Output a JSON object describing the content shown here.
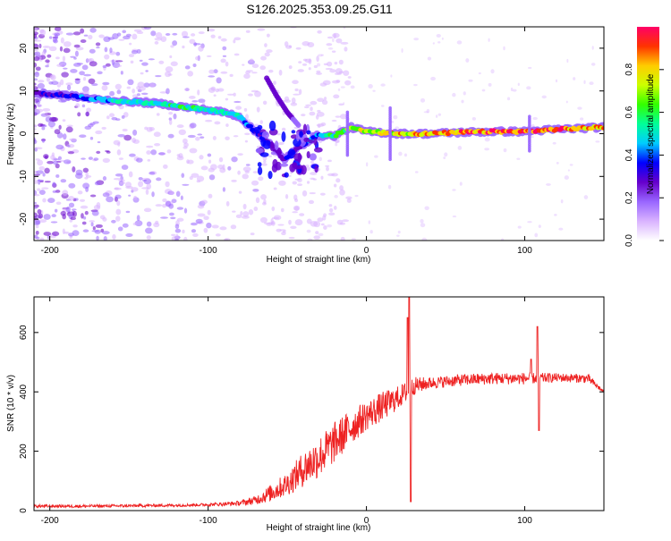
{
  "title": "S126.2025.353.09.25.G11",
  "chart_data": [
    {
      "type": "heatmap",
      "name": "spectrogram",
      "xlabel": "Height of straight line (km)",
      "ylabel": "Frequency (Hz)",
      "xlim": [
        -210,
        150
      ],
      "ylim": [
        -25,
        25
      ],
      "xticks": [
        -200,
        -100,
        0,
        100
      ],
      "yticks": [
        -20,
        -10,
        0,
        10,
        20
      ],
      "colorbar": {
        "label": "Normalized spectral amplitude",
        "range": [
          0,
          1
        ],
        "ticks": [
          0.0,
          0.2,
          0.4,
          0.6,
          0.8
        ],
        "colors": [
          "#ffffff",
          "#d9b3ff",
          "#9966ff",
          "#6600cc",
          "#0000ff",
          "#00ccff",
          "#00ff99",
          "#33ff00",
          "#ccff00",
          "#ffcc00",
          "#ff3300",
          "#ff0066"
        ]
      },
      "ridge": [
        {
          "x": -210,
          "y": 9.5,
          "amp": 0.35
        },
        {
          "x": -190,
          "y": 9.0,
          "amp": 0.35
        },
        {
          "x": -170,
          "y": 8.0,
          "amp": 0.45
        },
        {
          "x": -150,
          "y": 7.5,
          "amp": 0.5
        },
        {
          "x": -130,
          "y": 7.0,
          "amp": 0.55
        },
        {
          "x": -110,
          "y": 6.0,
          "amp": 0.55
        },
        {
          "x": -90,
          "y": 5.0,
          "amp": 0.55
        },
        {
          "x": -80,
          "y": 4.0,
          "amp": 0.5
        },
        {
          "x": -72,
          "y": 1.0,
          "amp": 0.4
        },
        {
          "x": -62,
          "y": -2.0,
          "amp": 0.3
        },
        {
          "x": -52,
          "y": -6.0,
          "amp": 0.3
        },
        {
          "x": -42,
          "y": -3.0,
          "amp": 0.3
        },
        {
          "x": -32,
          "y": -0.5,
          "amp": 0.45
        },
        {
          "x": -20,
          "y": -0.5,
          "amp": 0.6
        },
        {
          "x": -10,
          "y": 1.5,
          "amp": 0.65
        },
        {
          "x": 0,
          "y": 0.5,
          "amp": 0.75
        },
        {
          "x": 20,
          "y": 0.0,
          "amp": 0.85
        },
        {
          "x": 40,
          "y": 0.0,
          "amp": 0.85
        },
        {
          "x": 60,
          "y": 0.3,
          "amp": 0.9
        },
        {
          "x": 80,
          "y": 0.5,
          "amp": 0.95
        },
        {
          "x": 100,
          "y": 0.5,
          "amp": 0.95
        },
        {
          "x": 120,
          "y": 1.0,
          "amp": 0.9
        },
        {
          "x": 150,
          "y": 1.5,
          "amp": 0.85
        }
      ],
      "secondary_track": [
        {
          "x": -63,
          "y": 13,
          "amp": 0.3
        },
        {
          "x": -57,
          "y": 9,
          "amp": 0.3
        },
        {
          "x": -50,
          "y": 5,
          "amp": 0.25
        },
        {
          "x": -43,
          "y": 2,
          "amp": 0.2
        }
      ]
    },
    {
      "type": "line",
      "name": "snr",
      "xlabel": "Height of straight line (km)",
      "ylabel": "SNR (10 * v/v)",
      "xlim": [
        -210,
        150
      ],
      "ylim": [
        0,
        720
      ],
      "xticks": [
        -200,
        -100,
        0,
        100
      ],
      "yticks": [
        0,
        200,
        400,
        600
      ],
      "color": "#ee2222",
      "envelope": [
        {
          "x": -210,
          "y": 15,
          "noise": 5
        },
        {
          "x": -180,
          "y": 15,
          "noise": 5
        },
        {
          "x": -150,
          "y": 16,
          "noise": 5
        },
        {
          "x": -120,
          "y": 18,
          "noise": 5
        },
        {
          "x": -100,
          "y": 20,
          "noise": 5
        },
        {
          "x": -80,
          "y": 25,
          "noise": 8
        },
        {
          "x": -70,
          "y": 35,
          "noise": 15
        },
        {
          "x": -60,
          "y": 60,
          "noise": 30
        },
        {
          "x": -50,
          "y": 90,
          "noise": 40
        },
        {
          "x": -40,
          "y": 140,
          "noise": 60
        },
        {
          "x": -30,
          "y": 180,
          "noise": 70
        },
        {
          "x": -20,
          "y": 230,
          "noise": 70
        },
        {
          "x": -10,
          "y": 280,
          "noise": 60
        },
        {
          "x": 0,
          "y": 320,
          "noise": 50
        },
        {
          "x": 10,
          "y": 350,
          "noise": 50
        },
        {
          "x": 20,
          "y": 380,
          "noise": 40
        },
        {
          "x": 30,
          "y": 420,
          "noise": 30
        },
        {
          "x": 40,
          "y": 430,
          "noise": 20
        },
        {
          "x": 60,
          "y": 440,
          "noise": 20
        },
        {
          "x": 80,
          "y": 445,
          "noise": 20
        },
        {
          "x": 100,
          "y": 445,
          "noise": 20
        },
        {
          "x": 120,
          "y": 448,
          "noise": 15
        },
        {
          "x": 140,
          "y": 445,
          "noise": 15
        },
        {
          "x": 150,
          "y": 400,
          "noise": 5
        }
      ],
      "spikes": [
        {
          "x": 27,
          "y": 720
        },
        {
          "x": 28,
          "y": 30
        },
        {
          "x": 26,
          "y": 650
        },
        {
          "x": 108,
          "y": 620
        },
        {
          "x": 109,
          "y": 270
        },
        {
          "x": 104,
          "y": 510
        }
      ]
    }
  ]
}
